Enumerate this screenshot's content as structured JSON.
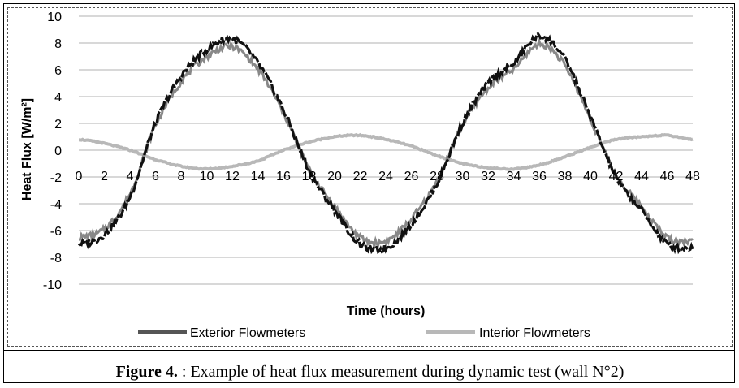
{
  "caption": {
    "label": "Figure 4.",
    "text": " : Example of heat flux measurement during dynamic test (wall N°2)"
  },
  "chart_data": {
    "type": "line",
    "title": "",
    "xlabel": "Time (hours)",
    "ylabel": "Heat Flux [W/m²]",
    "xlim": [
      0,
      48
    ],
    "ylim": [
      -10,
      10
    ],
    "xticks": [
      0,
      2,
      4,
      6,
      8,
      10,
      12,
      14,
      16,
      18,
      20,
      22,
      24,
      26,
      28,
      30,
      32,
      34,
      36,
      38,
      40,
      42,
      44,
      46,
      48
    ],
    "yticks": [
      10,
      8,
      6,
      4,
      2,
      0,
      -2,
      -4,
      -6,
      -8,
      -10
    ],
    "grid": "horizontal",
    "legend_position": "bottom",
    "x": [
      0,
      2,
      4,
      6,
      8,
      10,
      12,
      14,
      16,
      18,
      20,
      22,
      24,
      26,
      28,
      30,
      32,
      34,
      36,
      38,
      40,
      42,
      44,
      46,
      48
    ],
    "series": [
      {
        "name": "Exterior Flowmeters",
        "color": "#111111",
        "values": [
          -7.0,
          -6.3,
          -3.5,
          2.0,
          5.5,
          7.5,
          8.3,
          6.5,
          3.0,
          -1.5,
          -4.5,
          -7.0,
          -7.3,
          -5.5,
          -2.5,
          2.0,
          5.0,
          6.5,
          8.5,
          6.8,
          2.5,
          -2.0,
          -4.5,
          -7.0,
          -7.3
        ]
      },
      {
        "name": "Interior Flowmeters",
        "color": "#b8b8b8",
        "values": [
          0.8,
          0.5,
          0.0,
          -0.7,
          -1.2,
          -1.4,
          -1.2,
          -0.8,
          0.0,
          0.6,
          1.0,
          1.1,
          0.8,
          0.3,
          -0.4,
          -1.0,
          -1.3,
          -1.4,
          -1.1,
          -0.5,
          0.2,
          0.8,
          1.0,
          1.1,
          0.8
        ]
      }
    ]
  }
}
